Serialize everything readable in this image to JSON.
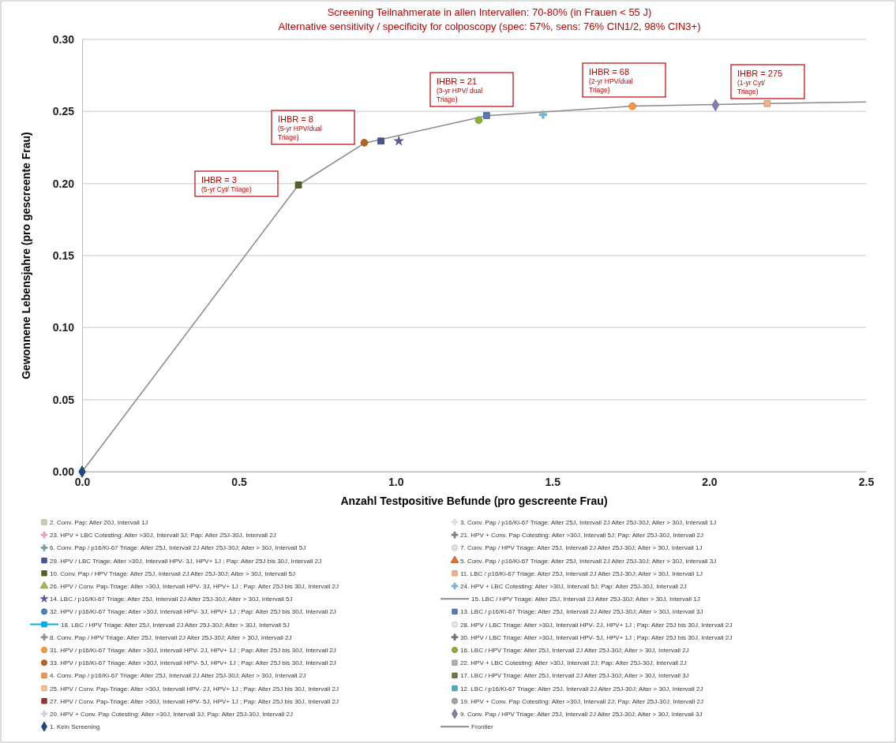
{
  "chart_data": {
    "type": "scatter",
    "title": "Screening Teilnahmerate in allen Intervallen: 70-80% (in Frauen < 55 J)",
    "subtitle": "Alternative sensitivity / specificity for colposcopy (spec: 57%, sens: 76% CIN1/2, 98% CIN3+)",
    "xlabel": "Anzahl Testpositive Befunde (pro gescreente Frau)",
    "ylabel": "Gewonnene Lebensjahre  (pro  gescreente Frau)",
    "xlim": [
      0,
      2.5
    ],
    "ylim": [
      0,
      0.3
    ],
    "xticks": [
      {
        "value": 0,
        "label": "0.0"
      },
      {
        "value": 0.5,
        "label": "0.5"
      },
      {
        "value": 1,
        "label": "1.0"
      },
      {
        "value": 1.5,
        "label": "1.5"
      },
      {
        "value": 2,
        "label": "2.0"
      },
      {
        "value": 2.5,
        "label": "2.5"
      }
    ],
    "yticks": [
      {
        "value": 0,
        "label": "0.00"
      },
      {
        "value": 0.05,
        "label": "0.05"
      },
      {
        "value": 0.1,
        "label": "0.10"
      },
      {
        "value": 0.15,
        "label": "0.15"
      },
      {
        "value": 0.2,
        "label": "0.20"
      },
      {
        "value": 0.25,
        "label": "0.25"
      },
      {
        "value": 0.3,
        "label": "0.30"
      }
    ],
    "grid": "y",
    "legend": "bottom",
    "annotations": [
      "IHBR = 3\n(5-yr Cyt/ Triage)",
      "IHBR = 8\n(5-yr HPV/dual\nTriage)",
      "IHBR = 21\n(3-yr HPV/ dual\nTriage)",
      "IHBR = 68\n(2-yr HPV/dual\nTriage)",
      "IHBR = 275\n(1-yr Cyt/\nTriage)"
    ],
    "series": [
      {
        "name": "2. Conv. Pap: Alter 20J, Intervall 1J",
        "color": "#c4d4b4",
        "marker": "square",
        "x": [
          null
        ],
        "values": [
          null
        ]
      },
      {
        "name": "3. Conv. Pap / p16/Ki-67 Triage: Alter 25J, Intervall 2J Alter 25J-30J; Alter > 30J, Intervall 1J",
        "color": "#dcdce6",
        "marker": "cross",
        "x": [
          null
        ],
        "values": [
          null
        ]
      },
      {
        "name": "23. HPV + LBC Cotesting: Alter >30J, Intervall 3J; Pap: Alter 25J-30J, Intervall 2J",
        "color": "#e0a0c0",
        "marker": "cross",
        "x": [
          null
        ],
        "values": [
          null
        ]
      },
      {
        "name": "21. HPV + Conv. Pap Cotesting: Alter >30J, Intervall 5J; Pap: Alter 25J-30J, Intervall 2J",
        "color": "#808080",
        "marker": "cross",
        "x": [
          null
        ],
        "values": [
          null
        ]
      },
      {
        "name": "6. Conv. Pap / p16/Ki-67 Triage: Alter 25J, Intervall 2J Alter 25J-30J; Alter > 30J, Intervall 5J",
        "color": "#6aa0a0",
        "marker": "cross",
        "x": [
          null
        ],
        "values": [
          null
        ]
      },
      {
        "name": "7. Conv. Pap / HPV Triage: Alter 25J, Intervall 2J Alter 25J-30J; Alter > 30J, Intervall 1J",
        "color": "#d8e4f0",
        "marker": "circle",
        "x": [
          null
        ],
        "values": [
          null
        ]
      },
      {
        "name": "29. HPV / LBC Triage: Alter >30J, Intervall  HPV- 3J, HPV+ 1J ; Pap: Alter 25J bis 30J, Intervall 2J",
        "color": "#4a5590",
        "marker": "square",
        "x": [
          0.953
        ],
        "values": [
          0.2295
        ]
      },
      {
        "name": "5. Conv. Pap / p16/Ki-67 Triage: Alter 25J, Intervall 2J Alter 25J-30J; Alter > 30J, Intervall 3J",
        "color": "#e07030",
        "marker": "triangle",
        "x": [
          null
        ],
        "values": [
          null
        ]
      },
      {
        "name": "10. Conv. Pap / HPV Triage: Alter 25J, Intervall 2J Alter 25J-30J; Alter > 30J, Intervall 5J",
        "color": "#4f6228",
        "marker": "square",
        "x": [
          0.69
        ],
        "values": [
          0.199
        ]
      },
      {
        "name": "11. LBC / p16/Ki-67 Triage: Alter 25J, Intervall 2J Alter 25J-30J; Alter > 30J, Intervall 1J",
        "color": "#f4b183",
        "marker": "square",
        "x": [
          2.185
        ],
        "values": [
          0.2555
        ]
      },
      {
        "name": "26. HPV / Conv. Pap-Triage: Alter >30J, Intervall  HPV- 3J, HPV+ 1J ; Pap: Alter 25J bis 30J, Intervall 2J",
        "color": "#9bbb59",
        "marker": "triangle",
        "x": [
          null
        ],
        "values": [
          null
        ]
      },
      {
        "name": "24. HPV + LBC Cotesting: Alter >30J, Intervall 5J; Pap: Alter 25J-30J, Intervall 2J",
        "color": "#7ab0d0",
        "marker": "cross",
        "x": [
          1.47
        ],
        "values": [
          0.2478
        ]
      },
      {
        "name": "14. LBC / p16/Ki-67 Triage: Alter 25J, Intervall 2J Alter 25J-30J; Alter > 30J, Intervall 5J",
        "color": "#5a5a9a",
        "marker": "star",
        "x": [
          1.01
        ],
        "values": [
          0.2295
        ]
      },
      {
        "name": "15. LBC / HPV Triage: Alter 25J, Intervall 2J Alter 25J-30J; Alter > 30J, Intervall 1J",
        "color": "#8c8c9c",
        "type": "line",
        "marker": "none",
        "x": [
          null
        ],
        "values": [
          null
        ]
      },
      {
        "name": "32. HPV / p16/Ki-67 Triage: Alter >30J, Intervall  HPV- 3J, HPV+ 1J ; Pap: Alter 25J bis 30J, Intervall 2J",
        "color": "#4f81bd",
        "marker": "circle",
        "x": [
          null
        ],
        "values": [
          null
        ]
      },
      {
        "name": "13. LBC / p16/Ki-67 Triage: Alter 25J, Intervall 2J Alter 25J-30J; Alter > 30J, Intervall 3J",
        "color": "#5a7ab5",
        "marker": "square",
        "x": [
          1.29
        ],
        "values": [
          0.2472
        ]
      },
      {
        "name": "18. LBC / HPV Triage: Alter 25J, Intervall 2J Alter 25J-30J; Alter > 30J, Intervall 5J",
        "color": "#00b0f0",
        "type": "line",
        "marker": "square",
        "x": [
          null
        ],
        "values": [
          null
        ]
      },
      {
        "name": "28. HPV / LBC Triage: Alter >30J, Intervall  HPV- 2J, HPV+ 1J ; Pap: Alter 25J bis 30J, Intervall 2J",
        "color": "#e0e8f4",
        "marker": "circle",
        "x": [
          null
        ],
        "values": [
          null
        ]
      },
      {
        "name": "8. Conv. Pap / HPV Triage: Alter 25J, Intervall 2J Alter 25J-30J; Alter > 30J, Intervall 2J",
        "color": "#909090",
        "marker": "cross",
        "x": [
          null
        ],
        "values": [
          null
        ]
      },
      {
        "name": "30. HPV / LBC Triage: Alter >30J, Intervall  HPV- 5J, HPV+ 1J ; Pap: Alter 25J bis 30J, Intervall 2J",
        "color": "#707070",
        "marker": "cross",
        "x": [
          null
        ],
        "values": [
          null
        ]
      },
      {
        "name": "31. HPV / p16/Ki-67 Triage: Alter >30J, Intervall  HPV- 2J, HPV+ 1J ; Pap: Alter 25J bis 30J, Intervall 2J",
        "color": "#f79646",
        "marker": "circle",
        "x": [
          1.755
        ],
        "values": [
          0.2537
        ]
      },
      {
        "name": "16. LBC / HPV Triage: Alter 25J, Intervall 2J Alter 25J-30J; Alter > 30J, Intervall 2J",
        "color": "#8fae3c",
        "marker": "circle",
        "x": [
          1.265
        ],
        "values": [
          0.244
        ]
      },
      {
        "name": "33. HPV / p16/Ki-67 Triage: Alter >30J, Intervall  HPV- 5J, HPV+ 1J ; Pap: Alter 25J bis 30J, Intervall 2J",
        "color": "#b5651d",
        "marker": "circle",
        "x": [
          0.9
        ],
        "values": [
          0.2283
        ]
      },
      {
        "name": "22. HPV + LBC Cotesting: Alter >30J, Intervall 2J; Pap: Alter 25J-30J, Intervall 2J",
        "color": "#b0b0b0",
        "marker": "square",
        "x": [
          null
        ],
        "values": [
          null
        ]
      },
      {
        "name": "4. Conv. Pap / p16/Ki-67 Triage: Alter 25J, Intervall 2J Alter 25J-30J; Alter > 30J, Intervall 2J",
        "color": "#f79646",
        "marker": "square",
        "x": [
          null
        ],
        "values": [
          null
        ]
      },
      {
        "name": "17. LBC / HPV Triage: Alter 25J, Intervall 2J Alter 25J-30J; Alter > 30J, Intervall 3J",
        "color": "#6a7a4a",
        "marker": "square",
        "x": [
          null
        ],
        "values": [
          null
        ]
      },
      {
        "name": "25. HPV / Conv. Pap-Triage: Alter >30J, Intervall  HPV- 2J, HPV+ 1J ; Pap: Alter 25J bis 30J, Intervall 2J",
        "color": "#fac090",
        "marker": "square",
        "x": [
          null
        ],
        "values": [
          null
        ]
      },
      {
        "name": "12. LBC / p16/Ki-67 Triage: Alter 25J, Intervall 2J Alter 25J-30J; Alter > 30J, Intervall 2J",
        "color": "#4bacc6",
        "marker": "square",
        "x": [
          null
        ],
        "values": [
          null
        ]
      },
      {
        "name": "27. HPV / Conv. Pap-Triage: Alter >30J, Intervall  HPV- 5J, HPV+ 1J ; Pap: Alter 25J bis 30J, Intervall 2J",
        "color": "#943634",
        "marker": "square",
        "x": [
          null
        ],
        "values": [
          null
        ]
      },
      {
        "name": "19. HPV + Conv. Pap Cotesting: Alter >30J, Intervall 2J; Pap: Alter 25J-30J, Intervall 2J",
        "color": "#a0a0b0",
        "marker": "circle",
        "x": [
          null
        ],
        "values": [
          null
        ]
      },
      {
        "name": "20. HPV + Conv. Pap Cotesting: Alter >30J, Intervall 3J; Pap: Alter 25J-30J, Intervall 2J",
        "color": "#d0d0e0",
        "marker": "cross",
        "x": [
          null
        ],
        "values": [
          null
        ]
      },
      {
        "name": "9. Conv. Pap / HPV Triage: Alter 25J, Intervall 2J Alter 25J-30J; Alter > 30J, Intervall 3J",
        "color": "#8080a8",
        "marker": "diamond",
        "x": [
          2.02
        ],
        "values": [
          0.2544
        ]
      },
      {
        "name": "1. Kein Screening",
        "color": "#1f497d",
        "marker": "diamond",
        "x": [
          0
        ],
        "values": [
          0
        ]
      },
      {
        "name": "Frontier",
        "color": "#8a8a8a",
        "type": "line",
        "marker": "none",
        "x": [
          0,
          0.69,
          0.9,
          1.29,
          1.755,
          2.185,
          2.5
        ],
        "values": [
          0,
          0.199,
          0.228,
          0.247,
          0.2537,
          0.2555,
          0.2566
        ]
      }
    ]
  }
}
